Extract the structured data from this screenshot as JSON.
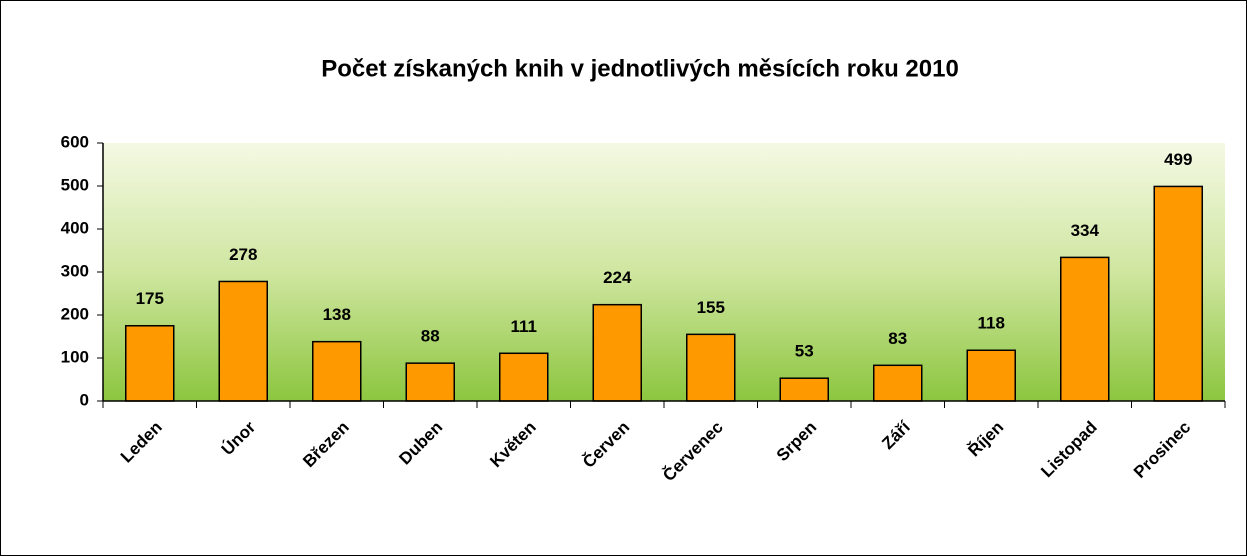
{
  "chart_data": {
    "type": "bar",
    "title": "Počet získaných knih v jednotlivých měsících roku 2010",
    "categories": [
      "Leden",
      "Únor",
      "Březen",
      "Duben",
      "Květen",
      "Červen",
      "Červenec",
      "Srpen",
      "Září",
      "Říjen",
      "Listopad",
      "Prosinec"
    ],
    "values": [
      175,
      278,
      138,
      88,
      111,
      224,
      155,
      53,
      83,
      118,
      334,
      499
    ],
    "color": "#ff9900",
    "ylim": [
      0,
      600
    ],
    "yticks": [
      0,
      100,
      200,
      300,
      400,
      500,
      600
    ],
    "grid": false
  }
}
